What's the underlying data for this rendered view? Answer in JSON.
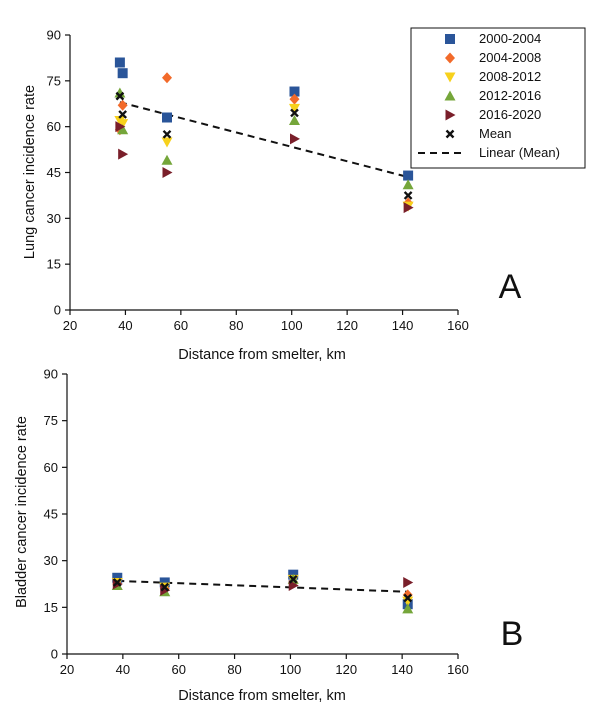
{
  "chart_data": [
    {
      "type": "scatter",
      "panel_label": "A",
      "xlabel": "Distance from smelter, km",
      "ylabel": "Lung cancer incidence rate",
      "xlim": [
        20,
        160
      ],
      "ylim": [
        0,
        90
      ],
      "xticks": [
        20,
        40,
        60,
        80,
        100,
        120,
        140,
        160
      ],
      "yticks": [
        0,
        15,
        30,
        45,
        60,
        75,
        90
      ],
      "legend": true,
      "legend_position": "top-right",
      "series": [
        {
          "name": "2000-2004",
          "marker": "square",
          "color": "#2a5599",
          "points": [
            [
              38,
              81
            ],
            [
              39,
              77.5
            ],
            [
              55,
              63
            ],
            [
              101,
              71.5
            ],
            [
              142,
              44
            ]
          ]
        },
        {
          "name": "2004-2008",
          "marker": "diamond",
          "color": "#f26a2a",
          "points": [
            [
              38,
              59
            ],
            [
              39,
              67
            ],
            [
              55,
              76
            ],
            [
              101,
              69
            ],
            [
              142,
              35
            ]
          ]
        },
        {
          "name": "2008-2012",
          "marker": "triangle-down",
          "color": "#f7d11c",
          "points": [
            [
              38,
              62
            ],
            [
              39,
              61
            ],
            [
              55,
              55
            ],
            [
              101,
              66
            ],
            [
              142,
              34
            ]
          ]
        },
        {
          "name": "2012-2016",
          "marker": "triangle-up",
          "color": "#75a63a",
          "points": [
            [
              38,
              71
            ],
            [
              39,
              59
            ],
            [
              55,
              49
            ],
            [
              101,
              62
            ],
            [
              142,
              41
            ]
          ]
        },
        {
          "name": "2016-2020",
          "marker": "triangle-right",
          "color": "#7a1f2a",
          "points": [
            [
              38,
              60
            ],
            [
              39,
              51
            ],
            [
              55,
              45
            ],
            [
              101,
              56
            ],
            [
              142,
              33.5
            ]
          ]
        },
        {
          "name": "Mean",
          "marker": "x",
          "color": "#111111",
          "points": [
            [
              38,
              70
            ],
            [
              39,
              64
            ],
            [
              55,
              57.5
            ],
            [
              101,
              64.5
            ],
            [
              142,
              37.5
            ]
          ]
        }
      ],
      "trendline": {
        "name": "Linear (Mean)",
        "style": "dashed",
        "from": [
          38,
          68
        ],
        "to": [
          142,
          43.5
        ]
      }
    },
    {
      "type": "scatter",
      "panel_label": "B",
      "xlabel": "Distance from smelter, km",
      "ylabel": "Bladder cancer incidence rate",
      "xlim": [
        20,
        160
      ],
      "ylim": [
        0,
        90
      ],
      "xticks": [
        20,
        40,
        60,
        80,
        100,
        120,
        140,
        160
      ],
      "yticks": [
        0,
        15,
        30,
        45,
        60,
        75,
        90
      ],
      "legend": false,
      "series": [
        {
          "name": "2000-2004",
          "marker": "square",
          "color": "#2a5599",
          "points": [
            [
              38,
              24.5
            ],
            [
              55,
              23
            ],
            [
              101,
              25.5
            ],
            [
              142,
              16
            ]
          ]
        },
        {
          "name": "2004-2008",
          "marker": "diamond",
          "color": "#f26a2a",
          "points": [
            [
              38,
              22.5
            ],
            [
              55,
              21
            ],
            [
              101,
              23
            ],
            [
              142,
              19
            ]
          ]
        },
        {
          "name": "2008-2012",
          "marker": "triangle-down",
          "color": "#f7d11c",
          "points": [
            [
              38,
              23
            ],
            [
              55,
              21.5
            ],
            [
              101,
              24
            ],
            [
              142,
              17
            ]
          ]
        },
        {
          "name": "2012-2016",
          "marker": "triangle-up",
          "color": "#75a63a",
          "points": [
            [
              38,
              22
            ],
            [
              55,
              20
            ],
            [
              101,
              24
            ],
            [
              142,
              14.5
            ]
          ]
        },
        {
          "name": "2016-2020",
          "marker": "triangle-right",
          "color": "#7a1f2a",
          "points": [
            [
              38,
              22.5
            ],
            [
              55,
              20.5
            ],
            [
              101,
              22
            ],
            [
              142,
              23
            ]
          ]
        },
        {
          "name": "Mean",
          "marker": "x",
          "color": "#111111",
          "points": [
            [
              38,
              23
            ],
            [
              55,
              21.5
            ],
            [
              101,
              24
            ],
            [
              142,
              18
            ]
          ]
        }
      ],
      "trendline": {
        "name": "Linear (Mean)",
        "style": "dashed",
        "from": [
          38,
          23.5
        ],
        "to": [
          142,
          20
        ]
      }
    }
  ]
}
